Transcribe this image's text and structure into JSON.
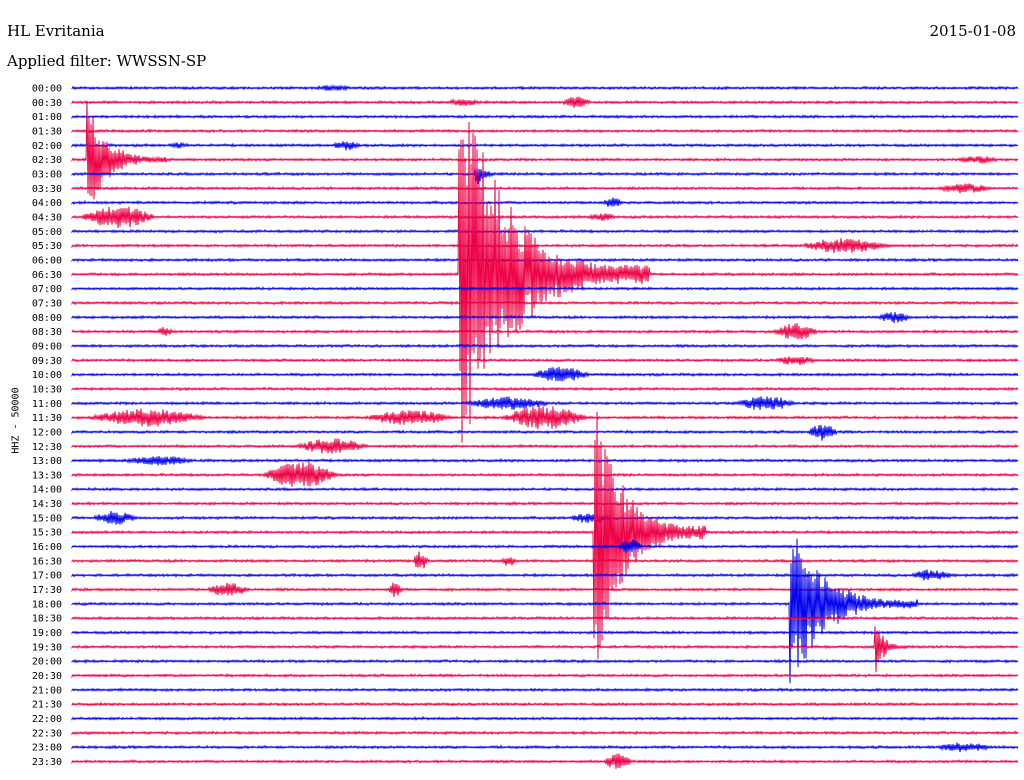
{
  "header": {
    "station": "HL Evritania",
    "date": "2015-01-08",
    "filter": "Applied filter: WWSSN-SP"
  },
  "chart_data": {
    "type": "line",
    "title": "HL Evritania",
    "subtitle": "Applied filter: WWSSN-SP",
    "ylabel": "HHZ - 50000",
    "row_labels": [
      "00:00",
      "00:30",
      "01:00",
      "01:30",
      "02:00",
      "02:30",
      "03:00",
      "03:30",
      "04:00",
      "04:30",
      "05:00",
      "05:30",
      "06:00",
      "06:30",
      "07:00",
      "07:30",
      "08:00",
      "08:30",
      "09:00",
      "09:30",
      "10:00",
      "10:30",
      "11:00",
      "11:30",
      "12:00",
      "12:30",
      "13:00",
      "13:30",
      "14:00",
      "14:30",
      "15:00",
      "15:30",
      "16:00",
      "16:30",
      "17:00",
      "17:30",
      "18:00",
      "18:30",
      "19:00",
      "19:30",
      "20:00",
      "20:30",
      "21:00",
      "21:30",
      "22:00",
      "22:30",
      "23:00",
      "23:30"
    ],
    "colors": [
      "#0000ee",
      "#ee0044"
    ],
    "events": [
      {
        "row": 0,
        "minute": 7.5,
        "amp": 3,
        "dur": 1.5
      },
      {
        "row": 1,
        "minute": 11.8,
        "amp": 4,
        "dur": 1.2
      },
      {
        "row": 1,
        "minute": 15.5,
        "amp": 6,
        "dur": 1.0
      },
      {
        "row": 4,
        "minute": 8.2,
        "amp": 5,
        "dur": 1.0
      },
      {
        "row": 4,
        "minute": 3.0,
        "amp": 3,
        "dur": 0.8
      },
      {
        "row": 5,
        "minute": 0.5,
        "amp": 60,
        "dur": 2.5,
        "spike": true
      },
      {
        "row": 5,
        "minute": 28.0,
        "amp": 4,
        "dur": 1.5
      },
      {
        "row": 6,
        "minute": 12.8,
        "amp": 14,
        "dur": 1.0,
        "spike": true
      },
      {
        "row": 7,
        "minute": 27.3,
        "amp": 5,
        "dur": 2.0
      },
      {
        "row": 8,
        "minute": 16.8,
        "amp": 6,
        "dur": 0.7
      },
      {
        "row": 9,
        "minute": 0.2,
        "amp": 12,
        "dur": 2.5
      },
      {
        "row": 9,
        "minute": 16.3,
        "amp": 4,
        "dur": 1.0
      },
      {
        "row": 13,
        "minute": 12.3,
        "amp": 200,
        "dur": 6.0,
        "spike": true
      },
      {
        "row": 11,
        "minute": 23.0,
        "amp": 8,
        "dur": 3.0
      },
      {
        "row": 17,
        "minute": 22.2,
        "amp": 9,
        "dur": 1.5
      },
      {
        "row": 17,
        "minute": 2.7,
        "amp": 6,
        "dur": 0.5
      },
      {
        "row": 16,
        "minute": 25.5,
        "amp": 6,
        "dur": 1.2
      },
      {
        "row": 19,
        "minute": 22.2,
        "amp": 5,
        "dur": 1.5
      },
      {
        "row": 20,
        "minute": 14.5,
        "amp": 8,
        "dur": 2.0
      },
      {
        "row": 22,
        "minute": 12.3,
        "amp": 7,
        "dur": 3.0
      },
      {
        "row": 22,
        "minute": 21.0,
        "amp": 8,
        "dur": 2.0
      },
      {
        "row": 23,
        "minute": 0.4,
        "amp": 9,
        "dur": 4.0
      },
      {
        "row": 23,
        "minute": 9.2,
        "amp": 8,
        "dur": 3.0
      },
      {
        "row": 23,
        "minute": 13.5,
        "amp": 12,
        "dur": 3.0
      },
      {
        "row": 24,
        "minute": 23.3,
        "amp": 9,
        "dur": 1.0
      },
      {
        "row": 25,
        "minute": 7.0,
        "amp": 8,
        "dur": 2.5
      },
      {
        "row": 27,
        "minute": 6.0,
        "amp": 14,
        "dur": 2.5
      },
      {
        "row": 26,
        "minute": 1.5,
        "amp": 5,
        "dur": 2.5
      },
      {
        "row": 30,
        "minute": 0.6,
        "amp": 7,
        "dur": 1.5
      },
      {
        "row": 30,
        "minute": 15.7,
        "amp": 6,
        "dur": 1.5
      },
      {
        "row": 31,
        "minute": 16.6,
        "amp": 140,
        "dur": 3.5,
        "spike": true
      },
      {
        "row": 32,
        "minute": 17.3,
        "amp": 8,
        "dur": 0.8
      },
      {
        "row": 33,
        "minute": 10.8,
        "amp": 10,
        "dur": 0.5
      },
      {
        "row": 33,
        "minute": 13.6,
        "amp": 6,
        "dur": 0.5
      },
      {
        "row": 34,
        "minute": 26.5,
        "amp": 6,
        "dur": 1.5
      },
      {
        "row": 35,
        "minute": 4.2,
        "amp": 7,
        "dur": 1.5
      },
      {
        "row": 35,
        "minute": 10.0,
        "amp": 8,
        "dur": 0.5
      },
      {
        "row": 36,
        "minute": 22.8,
        "amp": 90,
        "dur": 4.0,
        "spike": true
      },
      {
        "row": 39,
        "minute": 25.5,
        "amp": 30,
        "dur": 1.0,
        "spike": true
      },
      {
        "row": 46,
        "minute": 27.3,
        "amp": 5,
        "dur": 2.0
      },
      {
        "row": 47,
        "minute": 16.8,
        "amp": 8,
        "dur": 1.0
      }
    ]
  }
}
